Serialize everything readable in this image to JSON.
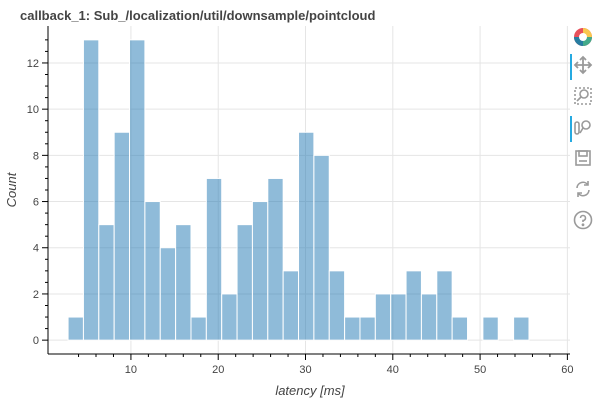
{
  "chart_data": {
    "type": "bar",
    "title": "callback_1: Sub_/localization/util/downsample/pointcloud",
    "xlabel": "latency [ms]",
    "ylabel": "Count",
    "xlim": [
      0.5,
      60.3
    ],
    "ylim": [
      -0.6,
      13.6
    ],
    "bin_width": 1.76,
    "bars": [
      {
        "x0": 2.8,
        "x1": 4.56,
        "count": 1
      },
      {
        "x0": 4.56,
        "x1": 6.32,
        "count": 13
      },
      {
        "x0": 6.32,
        "x1": 8.08,
        "count": 5
      },
      {
        "x0": 8.08,
        "x1": 9.84,
        "count": 9
      },
      {
        "x0": 9.84,
        "x1": 11.6,
        "count": 13
      },
      {
        "x0": 11.6,
        "x1": 13.36,
        "count": 6
      },
      {
        "x0": 13.36,
        "x1": 15.12,
        "count": 4
      },
      {
        "x0": 15.12,
        "x1": 16.88,
        "count": 5
      },
      {
        "x0": 16.88,
        "x1": 18.64,
        "count": 1
      },
      {
        "x0": 18.64,
        "x1": 20.4,
        "count": 7
      },
      {
        "x0": 20.4,
        "x1": 22.16,
        "count": 2
      },
      {
        "x0": 22.16,
        "x1": 23.92,
        "count": 5
      },
      {
        "x0": 23.92,
        "x1": 25.68,
        "count": 6
      },
      {
        "x0": 25.68,
        "x1": 27.44,
        "count": 7
      },
      {
        "x0": 27.44,
        "x1": 29.2,
        "count": 3
      },
      {
        "x0": 29.2,
        "x1": 30.96,
        "count": 9
      },
      {
        "x0": 30.96,
        "x1": 32.72,
        "count": 8
      },
      {
        "x0": 32.72,
        "x1": 34.48,
        "count": 3
      },
      {
        "x0": 34.48,
        "x1": 36.24,
        "count": 1
      },
      {
        "x0": 36.24,
        "x1": 38.0,
        "count": 1
      },
      {
        "x0": 38.0,
        "x1": 39.76,
        "count": 2
      },
      {
        "x0": 39.76,
        "x1": 41.52,
        "count": 2
      },
      {
        "x0": 41.52,
        "x1": 43.28,
        "count": 3
      },
      {
        "x0": 43.28,
        "x1": 45.04,
        "count": 2
      },
      {
        "x0": 45.04,
        "x1": 46.8,
        "count": 3
      },
      {
        "x0": 46.8,
        "x1": 48.56,
        "count": 1
      },
      {
        "x0": 50.32,
        "x1": 52.08,
        "count": 1
      },
      {
        "x0": 53.84,
        "x1": 55.6,
        "count": 1
      }
    ],
    "x_ticks": [
      10,
      20,
      30,
      40,
      50,
      60
    ],
    "y_ticks": [
      0,
      2,
      4,
      6,
      8,
      10,
      12
    ],
    "grid": true,
    "bar_color": "#1f77b4"
  },
  "toolbar": {
    "tools": [
      {
        "name": "bokeh-logo-icon",
        "active": false
      },
      {
        "name": "pan-tool-icon",
        "active": true
      },
      {
        "name": "box-zoom-tool-icon",
        "active": false
      },
      {
        "name": "wheel-zoom-tool-icon",
        "active": true
      },
      {
        "name": "save-tool-icon",
        "active": false
      },
      {
        "name": "reset-tool-icon",
        "active": false
      },
      {
        "name": "help-tool-icon",
        "active": false
      }
    ]
  }
}
